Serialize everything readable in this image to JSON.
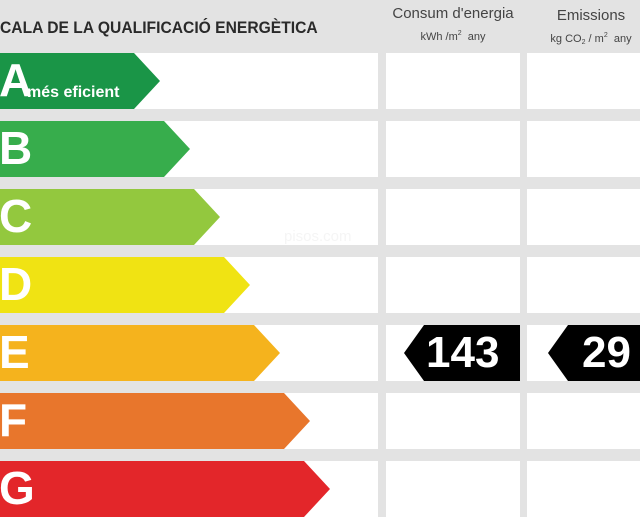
{
  "header": {
    "title": "CALA DE LA QUALIFICACIÓ ENERGÈTICA",
    "consumption": {
      "title": "Consum d'energia",
      "unit_prefix": "kWh /m",
      "unit_exp": "2",
      "unit_suffix": "any"
    },
    "emissions": {
      "title": "Emissions",
      "unit_prefix": "kg CO",
      "unit_sub": "2",
      "unit_mid": "/ m",
      "unit_exp": "2",
      "unit_suffix": "any"
    }
  },
  "scale": [
    {
      "letter": "A",
      "sublabel": "més eficient",
      "color": "#1a9547"
    },
    {
      "letter": "B",
      "sublabel": "",
      "color": "#37ad4c"
    },
    {
      "letter": "C",
      "sublabel": "",
      "color": "#93c83e"
    },
    {
      "letter": "D",
      "sublabel": "",
      "color": "#f0e313"
    },
    {
      "letter": "E",
      "sublabel": "",
      "color": "#f5b31d"
    },
    {
      "letter": "F",
      "sublabel": "",
      "color": "#e8762c"
    },
    {
      "letter": "G",
      "sublabel": "",
      "color": "#e3262a"
    }
  ],
  "rating": {
    "class": "E",
    "consumption_value": "143",
    "emissions_value": "29"
  },
  "watermark": "pisos.com",
  "colors": {
    "background": "#e3e3e3",
    "rating_box": "#000000"
  }
}
